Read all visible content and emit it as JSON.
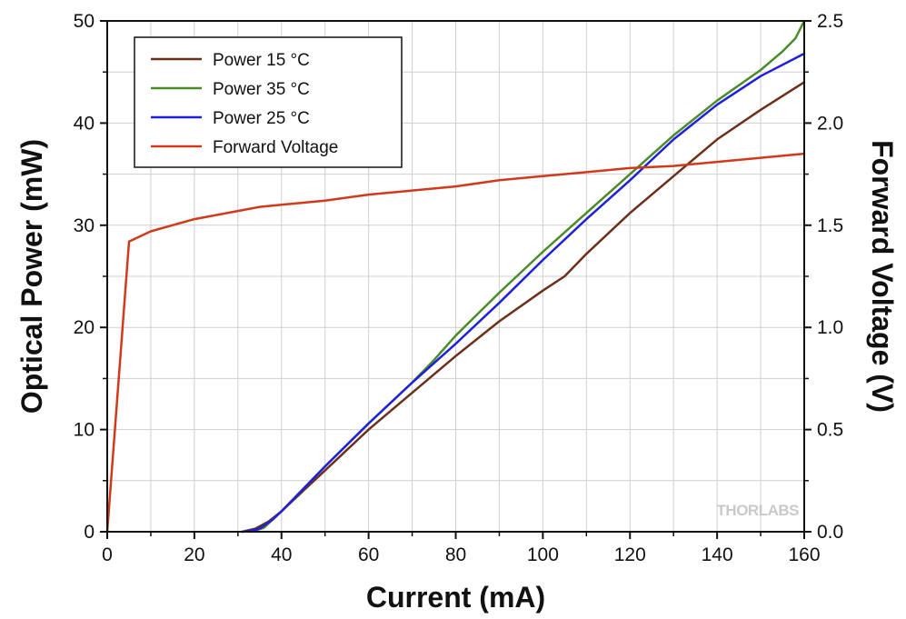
{
  "chart_data": {
    "type": "line",
    "x_axis": {
      "label": "Current (mA)",
      "range": [
        0,
        160
      ],
      "ticks": [
        0,
        20,
        40,
        60,
        80,
        100,
        120,
        140,
        160
      ],
      "minor_step": 10
    },
    "y_axis_left": {
      "label": "Optical Power (mW)",
      "range": [
        0,
        50
      ],
      "ticks": [
        0,
        10,
        20,
        30,
        40,
        50
      ],
      "minor_step": 5
    },
    "y_axis_right": {
      "label": "Forward Voltage (V)",
      "range": [
        0,
        2.5
      ],
      "ticks": [
        "0.0",
        "0.5",
        "1.0",
        "1.5",
        "2.0",
        "2.5"
      ],
      "minor_step": 0.25
    },
    "grid": true,
    "legend_position": "top-left",
    "watermark": "THORLABS",
    "series": [
      {
        "name": "Power 15 °C",
        "axis": "left",
        "color": "#6b2f1a",
        "x": [
          31,
          34,
          37,
          40,
          45,
          50,
          60,
          70,
          80,
          90,
          100,
          105,
          110,
          120,
          130,
          140,
          150,
          160
        ],
        "y": [
          0,
          0.3,
          1.0,
          2.0,
          4.0,
          6.0,
          10.0,
          13.6,
          17.2,
          20.6,
          23.6,
          25.0,
          27.2,
          31.2,
          34.8,
          38.4,
          41.3,
          44.0
        ]
      },
      {
        "name": "Power 35 °C",
        "axis": "left",
        "color": "#4a8c2a",
        "x": [
          33,
          36,
          40,
          50,
          60,
          70,
          75,
          80,
          90,
          100,
          110,
          120,
          130,
          140,
          150,
          155,
          158,
          160
        ],
        "y": [
          0,
          0.4,
          2.0,
          6.4,
          10.6,
          14.6,
          16.8,
          19.2,
          23.4,
          27.4,
          31.2,
          35.0,
          38.8,
          42.2,
          45.2,
          47.0,
          48.3,
          50.0
        ]
      },
      {
        "name": "Power 25 °C",
        "axis": "left",
        "color": "#1f1fe0",
        "x": [
          31,
          33,
          35,
          38,
          40,
          50,
          60,
          70,
          80,
          90,
          100,
          110,
          120,
          130,
          140,
          150,
          160
        ],
        "y": [
          0,
          0.1,
          0.3,
          1.2,
          2.0,
          6.4,
          10.6,
          14.6,
          18.4,
          22.4,
          26.6,
          30.6,
          34.4,
          38.4,
          41.8,
          44.6,
          46.8
        ]
      },
      {
        "name": "Forward Voltage",
        "axis": "right",
        "color": "#d03a1a",
        "x": [
          0,
          5,
          10,
          20,
          30,
          35,
          40,
          50,
          60,
          70,
          80,
          90,
          100,
          110,
          120,
          130,
          140,
          150,
          160
        ],
        "y": [
          0.0,
          1.42,
          1.47,
          1.53,
          1.57,
          1.59,
          1.6,
          1.62,
          1.65,
          1.67,
          1.69,
          1.72,
          1.74,
          1.76,
          1.78,
          1.79,
          1.81,
          1.83,
          1.85
        ]
      }
    ]
  }
}
